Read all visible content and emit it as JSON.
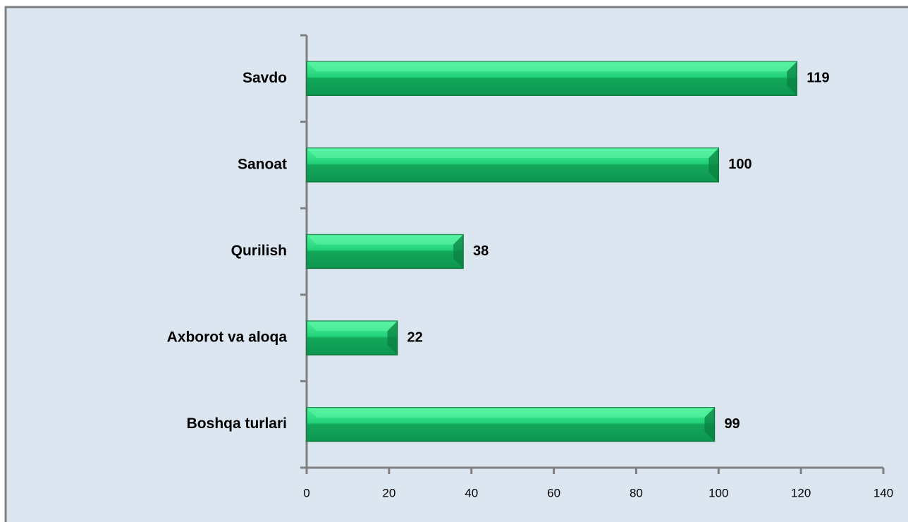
{
  "chart_data": {
    "type": "hbar",
    "categories": [
      "Savdo",
      "Sanoat",
      "Qurilish",
      "Axborot va aloqa",
      "Boshqa turlari"
    ],
    "values": [
      119,
      100,
      38,
      22,
      99
    ],
    "color": "#1ec46a",
    "xlim": [
      0,
      140
    ],
    "xticks": [
      0,
      20,
      40,
      60,
      80,
      100,
      120,
      140
    ]
  }
}
